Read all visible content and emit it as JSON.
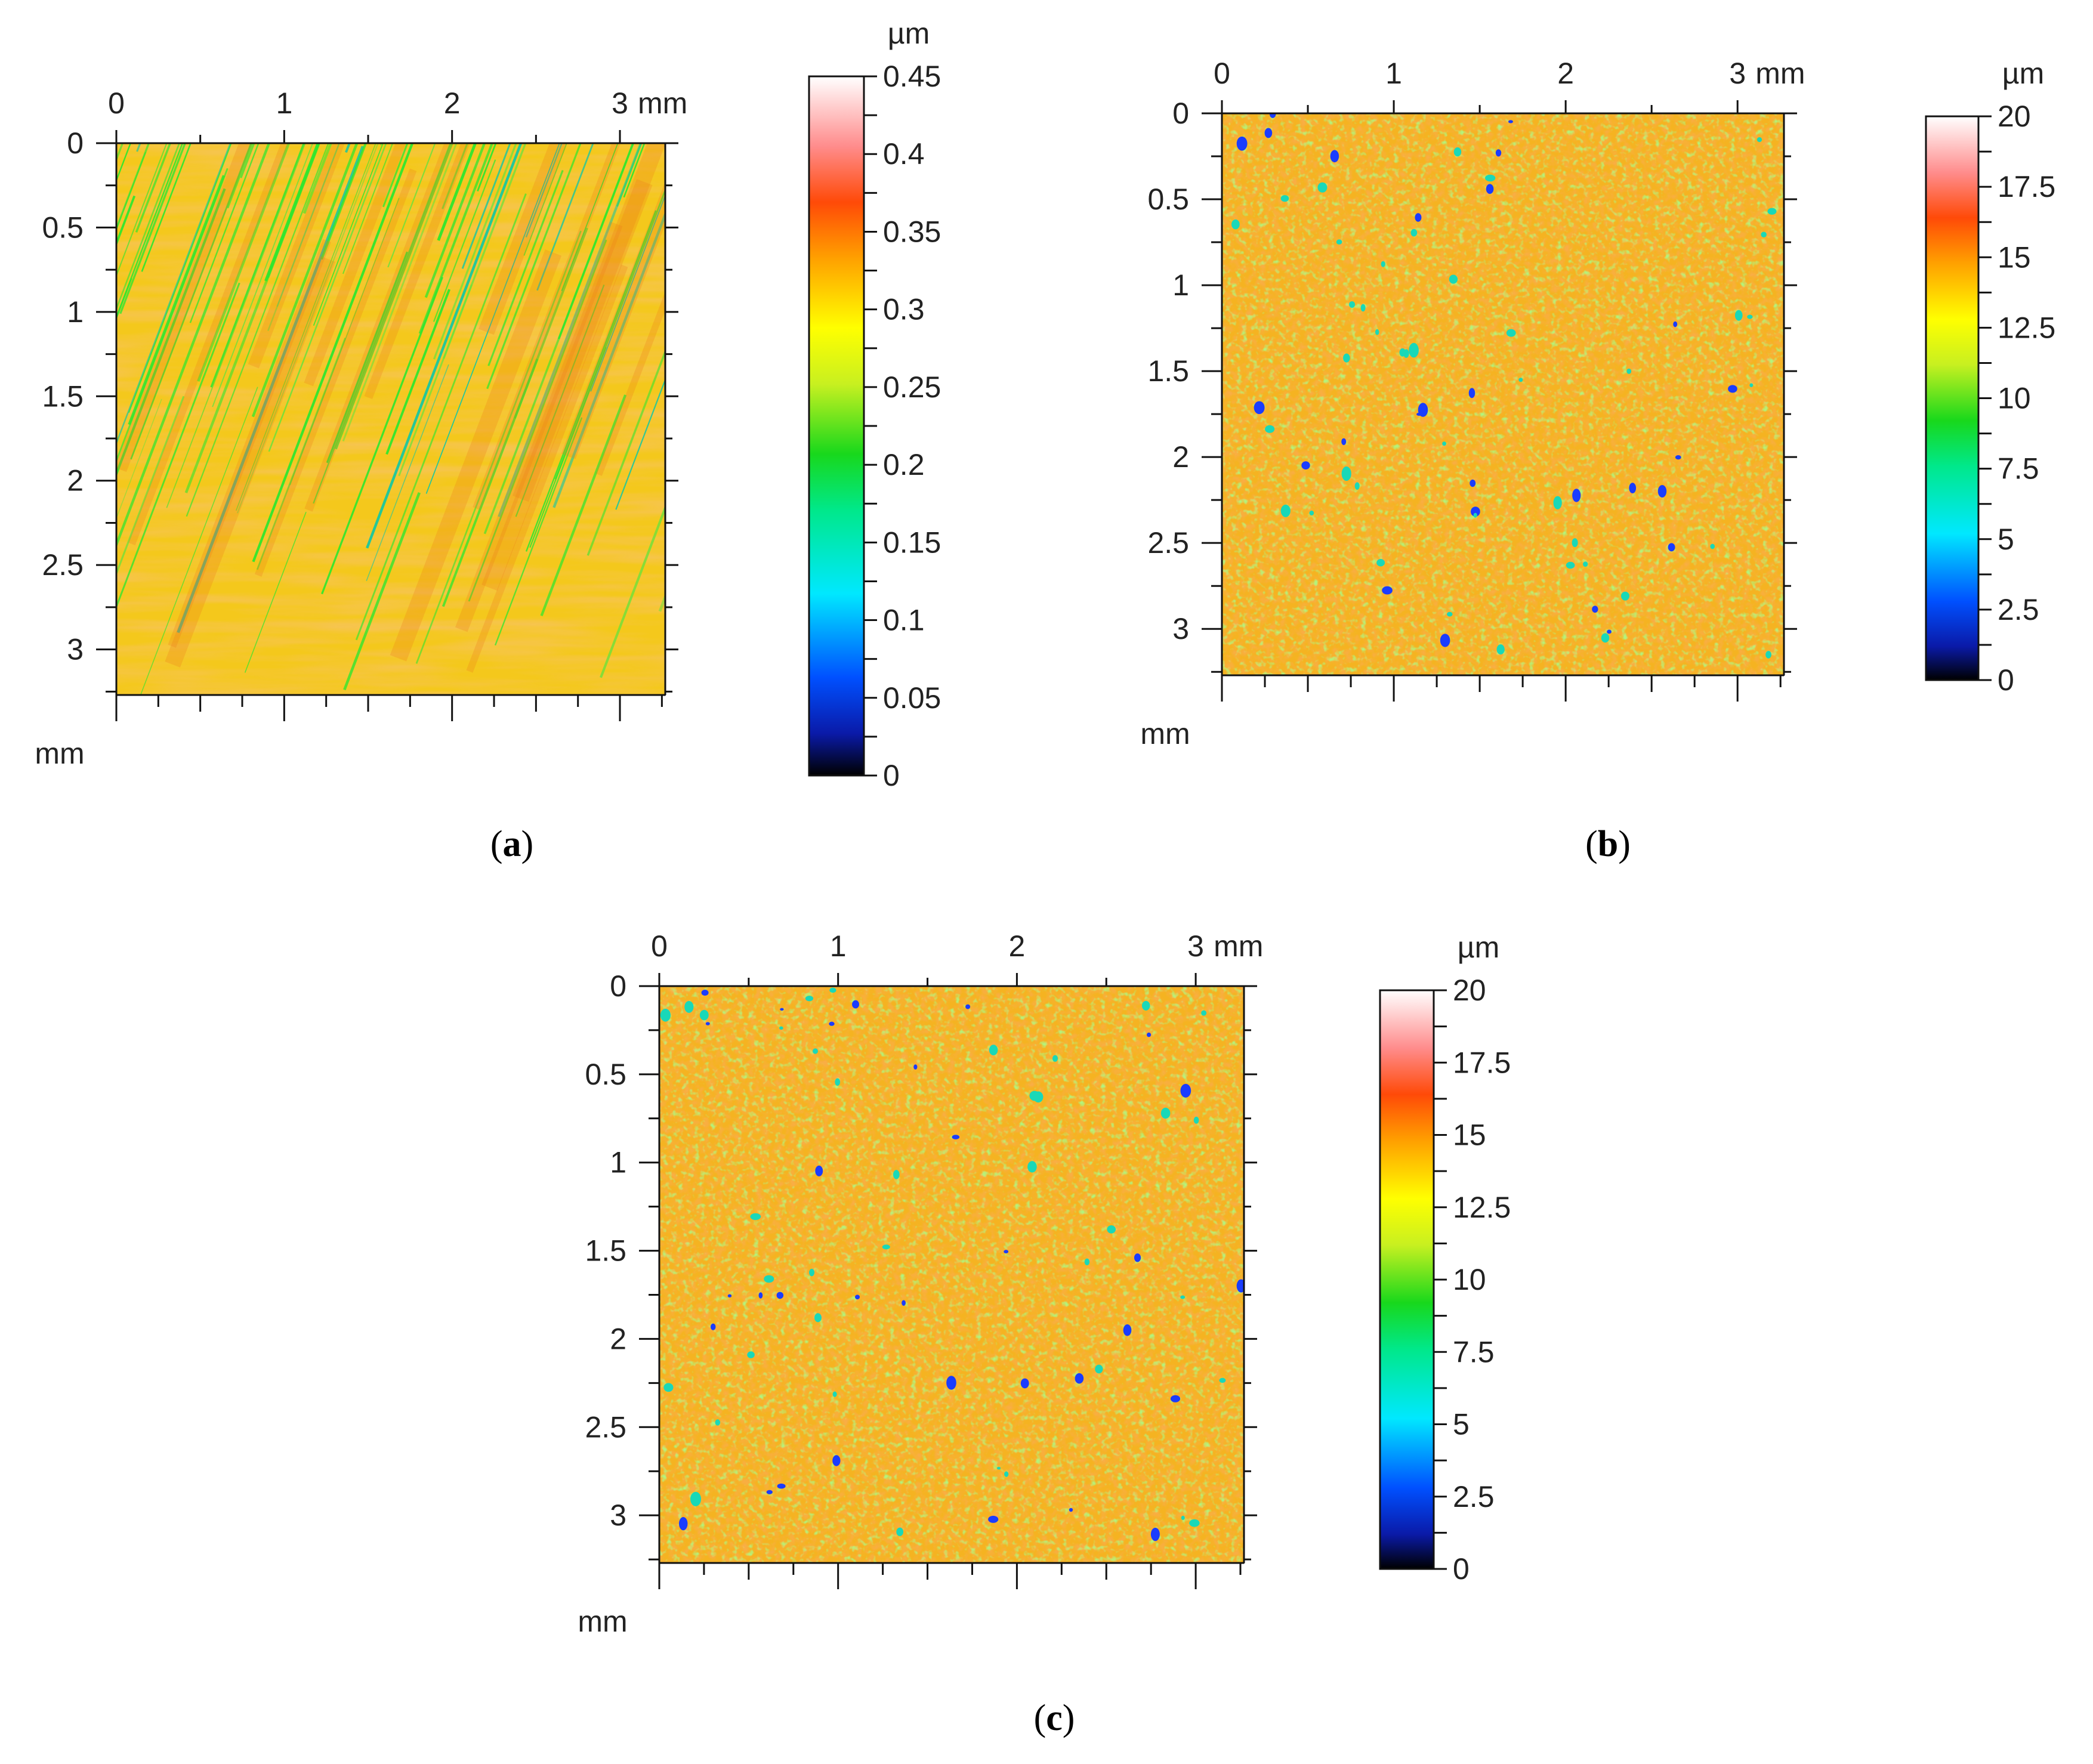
{
  "figure": {
    "panels": [
      {
        "id": "a",
        "label": "(a)",
        "label_letter": "a",
        "x_unit": "mm",
        "y_unit": "mm",
        "x_ticks": [
          "0",
          "1",
          "2",
          "3"
        ],
        "y_ticks": [
          "0",
          "0.5",
          "1",
          "1.5",
          "2",
          "2.5",
          "3"
        ],
        "colorbar": {
          "unit": "µm",
          "ticks": [
            "0.45",
            "0.4",
            "0.35",
            "0.3",
            "0.25",
            "0.2",
            "0.15",
            "0.1",
            "0.05",
            "0"
          ]
        }
      },
      {
        "id": "b",
        "label": "(b)",
        "label_letter": "b",
        "x_unit": "mm",
        "y_unit": "mm",
        "x_ticks": [
          "0",
          "1",
          "2",
          "3"
        ],
        "y_ticks": [
          "0",
          "0.5",
          "1",
          "1.5",
          "2",
          "2.5",
          "3"
        ],
        "colorbar": {
          "unit": "µm",
          "ticks": [
            "20",
            "17.5",
            "15",
            "12.5",
            "10",
            "7.5",
            "5",
            "2.5",
            "0"
          ]
        }
      },
      {
        "id": "c",
        "label": "(c)",
        "label_letter": "c",
        "x_unit": "mm",
        "y_unit": "mm",
        "x_ticks": [
          "0",
          "1",
          "2",
          "3"
        ],
        "y_ticks": [
          "0",
          "0.5",
          "1",
          "1.5",
          "2",
          "2.5",
          "3"
        ],
        "colorbar": {
          "unit": "µm",
          "ticks": [
            "20",
            "17.5",
            "15",
            "12.5",
            "10",
            "7.5",
            "5",
            "2.5",
            "0"
          ]
        }
      }
    ]
  },
  "chart_data": [
    {
      "type": "heatmap",
      "title": "(a)",
      "xlabel": "mm",
      "ylabel": "mm",
      "xlim": [
        0,
        3.27
      ],
      "ylim": [
        0,
        3.27
      ],
      "x_ticks": [
        0,
        1,
        2,
        3
      ],
      "y_ticks": [
        0,
        0.5,
        1,
        1.5,
        2,
        2.5,
        3
      ],
      "colorbar_label": "µm",
      "colorbar_range": [
        0,
        0.45
      ],
      "colorbar_ticks": [
        0,
        0.05,
        0.1,
        0.15,
        0.2,
        0.25,
        0.3,
        0.35,
        0.4,
        0.45
      ],
      "dominant_value_range": [
        0.2,
        0.35
      ],
      "pattern": "diagonal scratch lines"
    },
    {
      "type": "heatmap",
      "title": "(b)",
      "xlabel": "mm",
      "ylabel": "mm",
      "xlim": [
        0,
        3.27
      ],
      "ylim": [
        0,
        3.27
      ],
      "x_ticks": [
        0,
        1,
        2,
        3
      ],
      "y_ticks": [
        0,
        0.5,
        1,
        1.5,
        2,
        2.5,
        3
      ],
      "colorbar_label": "µm",
      "colorbar_range": [
        0,
        20
      ],
      "colorbar_ticks": [
        0,
        2.5,
        5,
        7.5,
        10,
        12.5,
        15,
        17.5,
        20
      ],
      "dominant_value_range": [
        10,
        16
      ],
      "pattern": "granular speckle"
    },
    {
      "type": "heatmap",
      "title": "(c)",
      "xlabel": "mm",
      "ylabel": "mm",
      "xlim": [
        0,
        3.27
      ],
      "ylim": [
        0,
        3.27
      ],
      "x_ticks": [
        0,
        1,
        2,
        3
      ],
      "y_ticks": [
        0,
        0.5,
        1,
        1.5,
        2,
        2.5,
        3
      ],
      "colorbar_label": "µm",
      "colorbar_range": [
        0,
        20
      ],
      "colorbar_ticks": [
        0,
        2.5,
        5,
        7.5,
        10,
        12.5,
        15,
        17.5,
        20
      ],
      "dominant_value_range": [
        10,
        16
      ],
      "pattern": "granular speckle"
    }
  ]
}
